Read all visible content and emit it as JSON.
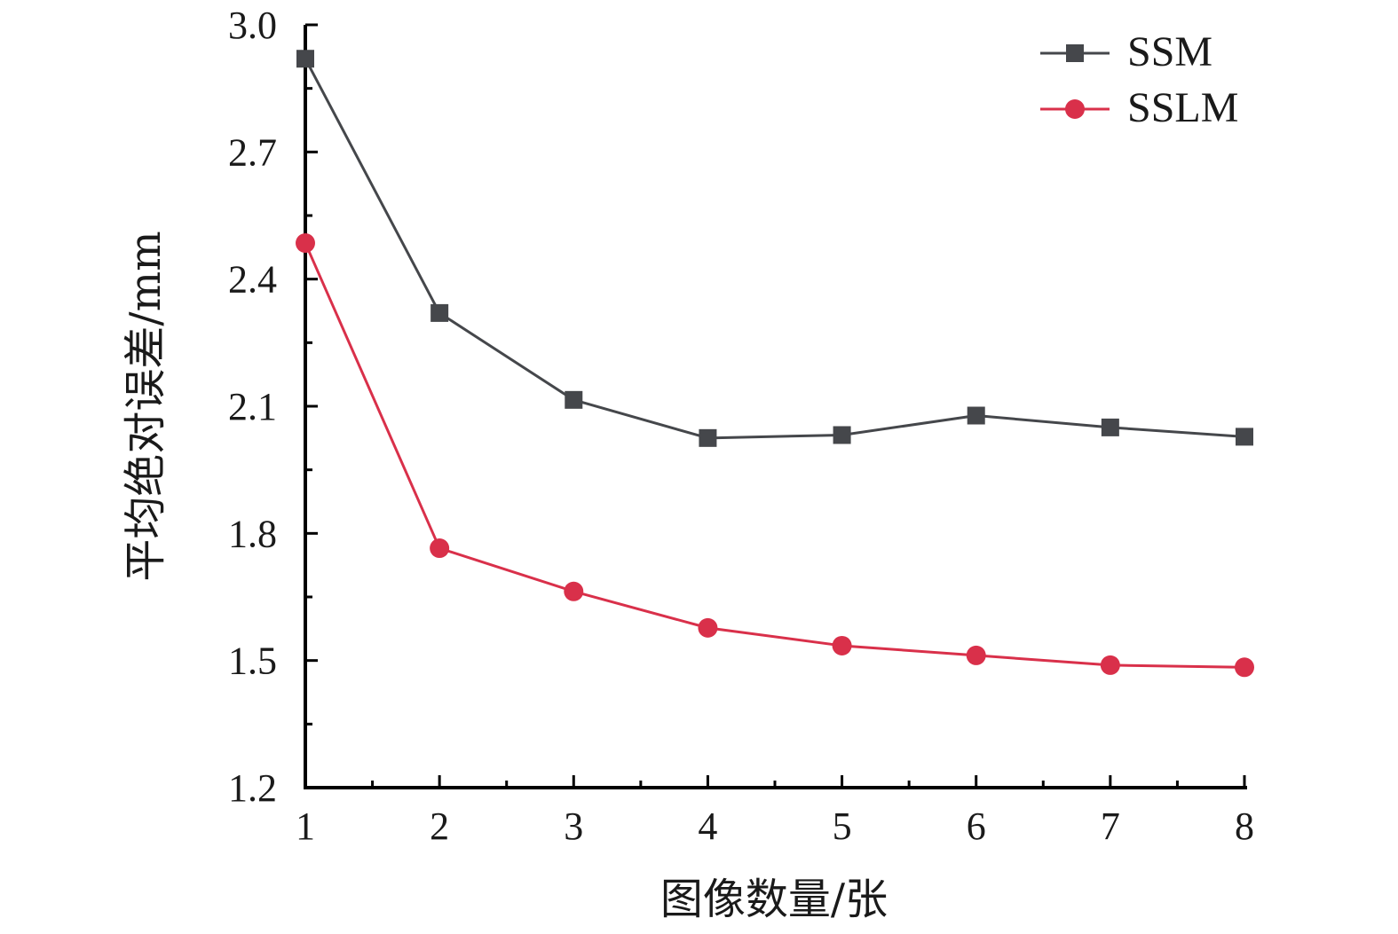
{
  "chart_data": {
    "type": "line",
    "title": "",
    "xlabel": "图像数量/张",
    "ylabel": "平均绝对误差/mm",
    "x": [
      1,
      2,
      3,
      4,
      5,
      6,
      7,
      8
    ],
    "xlim": [
      1,
      8
    ],
    "ylim": [
      1.2,
      3.0
    ],
    "x_ticks": [
      "1",
      "2",
      "3",
      "4",
      "5",
      "6",
      "7",
      "8"
    ],
    "y_ticks": [
      "1.2",
      "1.5",
      "1.8",
      "2.1",
      "2.4",
      "2.7",
      "3.0"
    ],
    "grid": false,
    "legend_position": "top-right",
    "series": [
      {
        "name": "SSM",
        "marker": "square",
        "color": "#45474b",
        "values": [
          2.92,
          2.32,
          2.115,
          2.025,
          2.032,
          2.078,
          2.05,
          2.028
        ]
      },
      {
        "name": "SSLM",
        "marker": "circle",
        "color": "#d9304a",
        "values": [
          2.485,
          1.765,
          1.663,
          1.577,
          1.535,
          1.512,
          1.489,
          1.484
        ]
      }
    ]
  }
}
